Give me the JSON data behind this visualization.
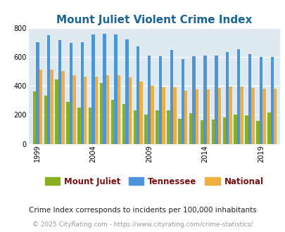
{
  "title": "Mount Juliet Violent Crime Index",
  "title_color": "#1a6496",
  "title_fontsize": 11,
  "years": [
    1999,
    2000,
    2001,
    2002,
    2003,
    2004,
    2005,
    2006,
    2007,
    2008,
    2009,
    2010,
    2011,
    2012,
    2013,
    2014,
    2015,
    2016,
    2017,
    2018,
    2019,
    2020
  ],
  "mount_juliet": [
    360,
    335,
    445,
    290,
    250,
    250,
    420,
    305,
    275,
    233,
    200,
    230,
    230,
    175,
    210,
    165,
    170,
    180,
    200,
    195,
    160,
    215
  ],
  "tennessee": [
    700,
    750,
    715,
    695,
    700,
    755,
    760,
    755,
    720,
    670,
    610,
    605,
    650,
    585,
    605,
    610,
    610,
    635,
    655,
    620,
    600,
    600
  ],
  "national": [
    510,
    510,
    500,
    475,
    465,
    465,
    475,
    475,
    460,
    430,
    400,
    390,
    390,
    365,
    375,
    375,
    385,
    395,
    395,
    385,
    380,
    380
  ],
  "mount_juliet_color": "#8ab020",
  "tennessee_color": "#4d94db",
  "national_color": "#f0b040",
  "plot_bg_color": "#deeaf0",
  "ylim": [
    0,
    800
  ],
  "yticks": [
    0,
    200,
    400,
    600,
    800
  ],
  "xlabel_ticks": [
    1999,
    2004,
    2009,
    2014,
    2019
  ],
  "bar_width": 0.28,
  "legend_labels": [
    "Mount Juliet",
    "Tennessee",
    "National"
  ],
  "legend_label_color": "#7a1010",
  "footnote1": "Crime Index corresponds to incidents per 100,000 inhabitants",
  "footnote2": "© 2025 CityRating.com - https://www.cityrating.com/crime-statistics/",
  "footnote1_color": "#222222",
  "footnote2_color": "#999999",
  "footnote1_fontsize": 7.5,
  "footnote2_fontsize": 6.5,
  "legend_fontsize": 8.5,
  "tick_fontsize": 7,
  "grid_color": "#ffffff"
}
